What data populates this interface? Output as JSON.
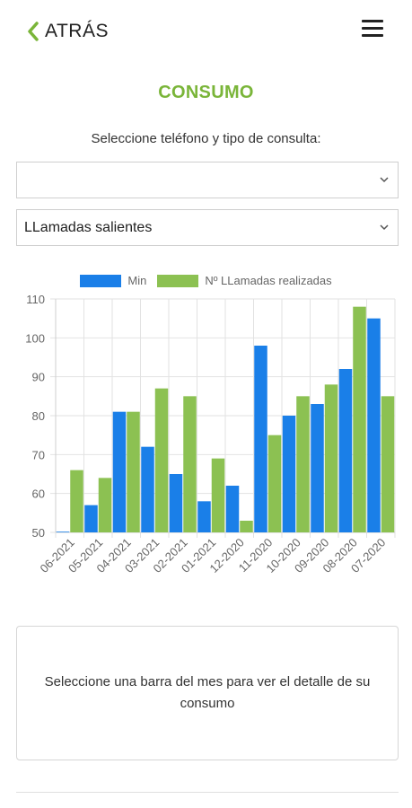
{
  "header": {
    "back_label": "ATRÁS",
    "back_icon": "chevron-left-icon",
    "menu_icon": "hamburger-menu-icon"
  },
  "page": {
    "title": "CONSUMO",
    "subtitle": "Seleccione teléfono y tipo de consulta:"
  },
  "filters": {
    "phone_select_value": "",
    "type_select_value": "LLamadas salientes"
  },
  "colors": {
    "accent": "#7ab539",
    "series_min": "#1a7fe8",
    "series_calls": "#8cc152"
  },
  "chart_data": {
    "type": "bar",
    "categories": [
      "06-2021",
      "05-2021",
      "04-2021",
      "03-2021",
      "02-2021",
      "01-2021",
      "12-2020",
      "11-2020",
      "10-2020",
      "09-2020",
      "08-2020",
      "07-2020"
    ],
    "series": [
      {
        "name": "Min",
        "values": [
          50,
          57,
          81,
          72,
          65,
          58,
          62,
          98,
          80,
          83,
          92,
          105
        ]
      },
      {
        "name": "Nº LLamadas realizadas",
        "values": [
          66,
          64,
          81,
          87,
          85,
          69,
          53,
          75,
          85,
          88,
          108,
          85
        ]
      }
    ],
    "ylim": [
      50,
      110
    ],
    "yticks": [
      "50",
      "60",
      "70",
      "80",
      "90",
      "100",
      "110"
    ],
    "grid": true,
    "legend": "top"
  },
  "info": {
    "message": "Seleccione una barra del mes para ver el detalle de su consumo"
  }
}
